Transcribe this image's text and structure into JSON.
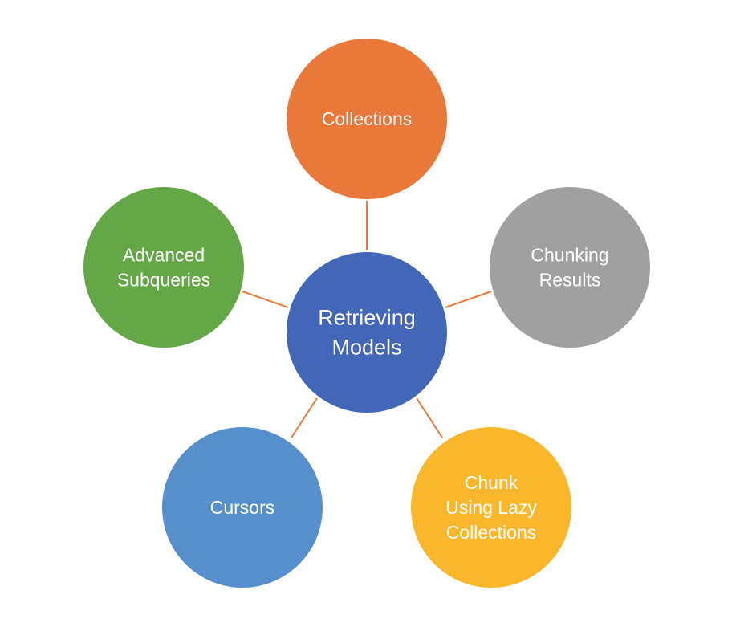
{
  "diagram": {
    "type": "radial-hub",
    "connector_color": "#e9793b",
    "center": {
      "lines": [
        "Retrieving",
        "Models"
      ],
      "color": "#4267b9"
    },
    "nodes": [
      {
        "id": "collections",
        "lines": [
          "Collections"
        ],
        "color": "#e9793b"
      },
      {
        "id": "chunking-results",
        "lines": [
          "Chunking",
          "Results"
        ],
        "color": "#a0a0a0"
      },
      {
        "id": "chunk-using-lazy-collections",
        "lines": [
          "Chunk",
          "Using Lazy",
          "Collections"
        ],
        "color": "#fbb72b"
      },
      {
        "id": "cursors",
        "lines": [
          "Cursors"
        ],
        "color": "#578fcd"
      },
      {
        "id": "advanced-subqueries",
        "lines": [
          "Advanced",
          "Subqueries"
        ],
        "color": "#63a746"
      }
    ]
  }
}
